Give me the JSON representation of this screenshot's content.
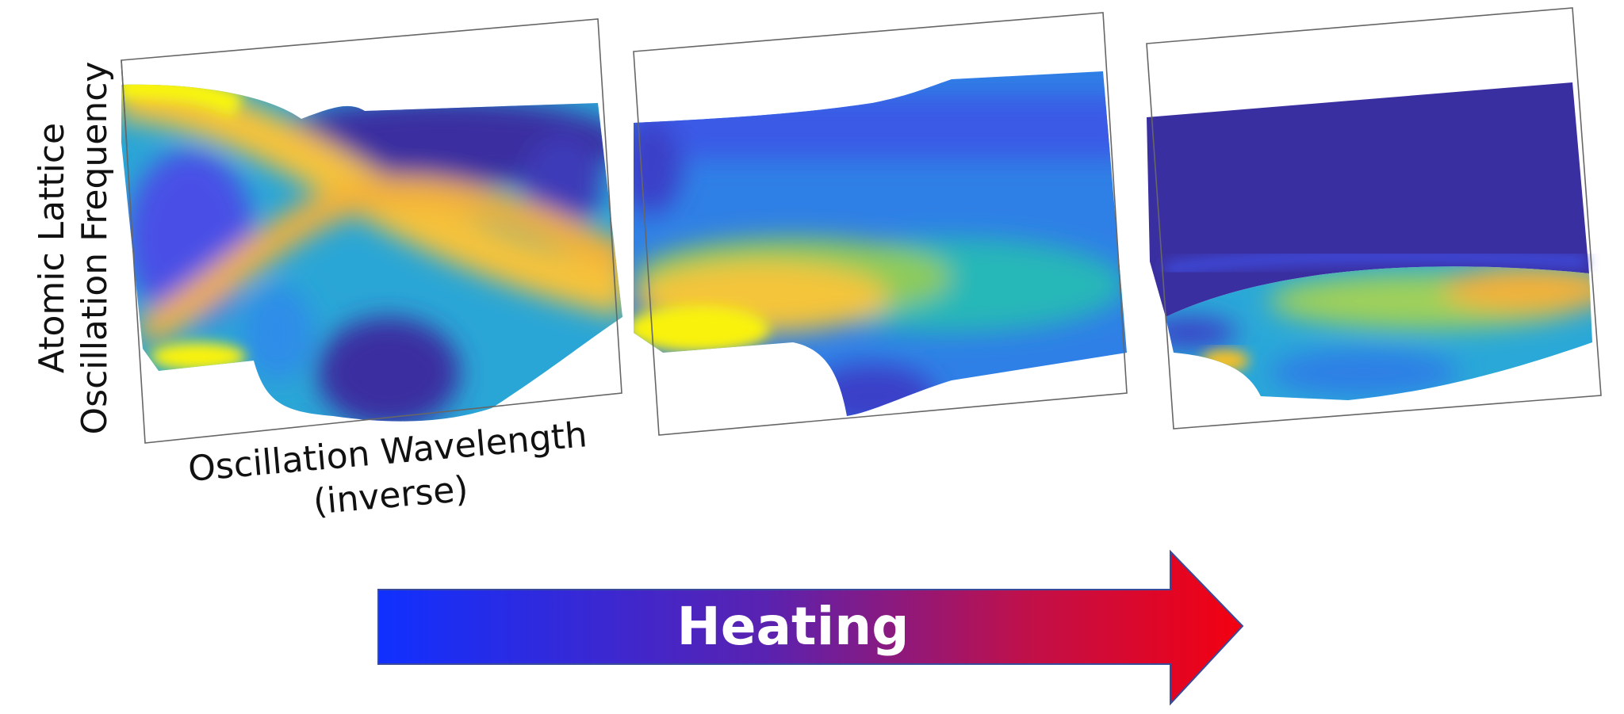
{
  "y_axis_label": [
    "Atomic Lattice",
    "Oscillation Frequency"
  ],
  "x_axis_label": [
    "Oscillation Wavelength",
    "(inverse)"
  ],
  "arrow_label": "Heating"
}
